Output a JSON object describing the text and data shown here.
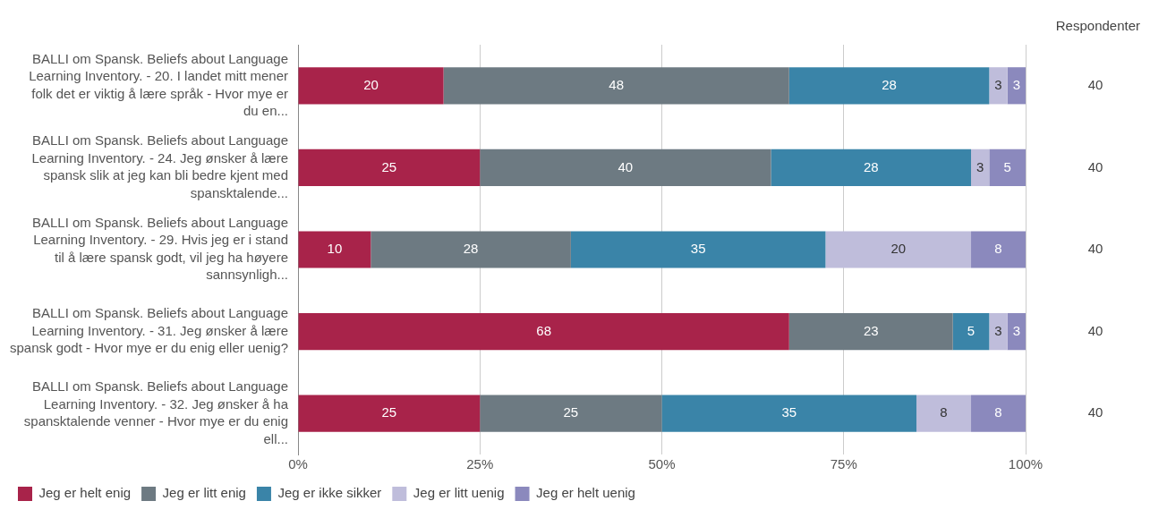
{
  "chart_data": {
    "type": "bar",
    "orientation": "horizontal",
    "stacked": true,
    "categories": [
      "BALLI om Spansk. Beliefs about Language Learning Inventory. - 20. I landet mitt mener folk det er viktig å lære språk - Hvor mye er du en...",
      "BALLI om Spansk. Beliefs about Language Learning Inventory. - 24. Jeg ønsker å lære spansk slik at jeg kan bli bedre kjent med spansktalende...",
      "BALLI om Spansk. Beliefs about Language Learning Inventory. - 29. Hvis jeg er i stand til å lære spansk godt, vil jeg ha høyere sannsynligh...",
      "BALLI om Spansk. Beliefs about Language Learning Inventory. - 31. Jeg ønsker å lære spansk godt - Hvor mye er du enig eller uenig?",
      "BALLI om Spansk. Beliefs about Language Learning Inventory. - 32. Jeg ønsker å ha spansktalende venner - Hvor mye er du enig ell..."
    ],
    "series": [
      {
        "name": "Jeg er helt enig",
        "color": "#a8234a",
        "values": [
          20,
          25,
          10,
          67.5,
          25
        ],
        "value_labels": [
          "20",
          "25",
          "10",
          "68",
          "25"
        ]
      },
      {
        "name": "Jeg er litt enig",
        "color": "#6d7a82",
        "values": [
          47.5,
          40,
          27.5,
          22.5,
          25
        ],
        "value_labels": [
          "48",
          "40",
          "28",
          "23",
          "25"
        ]
      },
      {
        "name": "Jeg er ikke sikker",
        "color": "#3a84a8",
        "values": [
          27.5,
          27.5,
          35,
          5,
          35
        ],
        "value_labels": [
          "28",
          "28",
          "35",
          "5",
          "35"
        ]
      },
      {
        "name": "Jeg er litt uenig",
        "color": "#bfbddb",
        "values": [
          2.5,
          2.5,
          20,
          2.5,
          7.5
        ],
        "value_labels": [
          "3",
          "3",
          "20",
          "3",
          "8"
        ]
      },
      {
        "name": "Jeg er helt uenig",
        "color": "#8b89bd",
        "values": [
          2.5,
          5,
          7.5,
          2.5,
          7.5
        ],
        "value_labels": [
          "3",
          "5",
          "8",
          "3",
          "8"
        ]
      }
    ],
    "xlim": [
      0,
      100
    ],
    "xticks": [
      {
        "value": 0,
        "label": "0%"
      },
      {
        "value": 25,
        "label": "25%"
      },
      {
        "value": 50,
        "label": "50%"
      },
      {
        "value": 75,
        "label": "75%"
      },
      {
        "value": 100,
        "label": "100%"
      }
    ],
    "grid": "x",
    "legend": "bottom",
    "annotations": [
      "Respondenter",
      "40",
      "40",
      "40",
      "40",
      "40"
    ]
  }
}
